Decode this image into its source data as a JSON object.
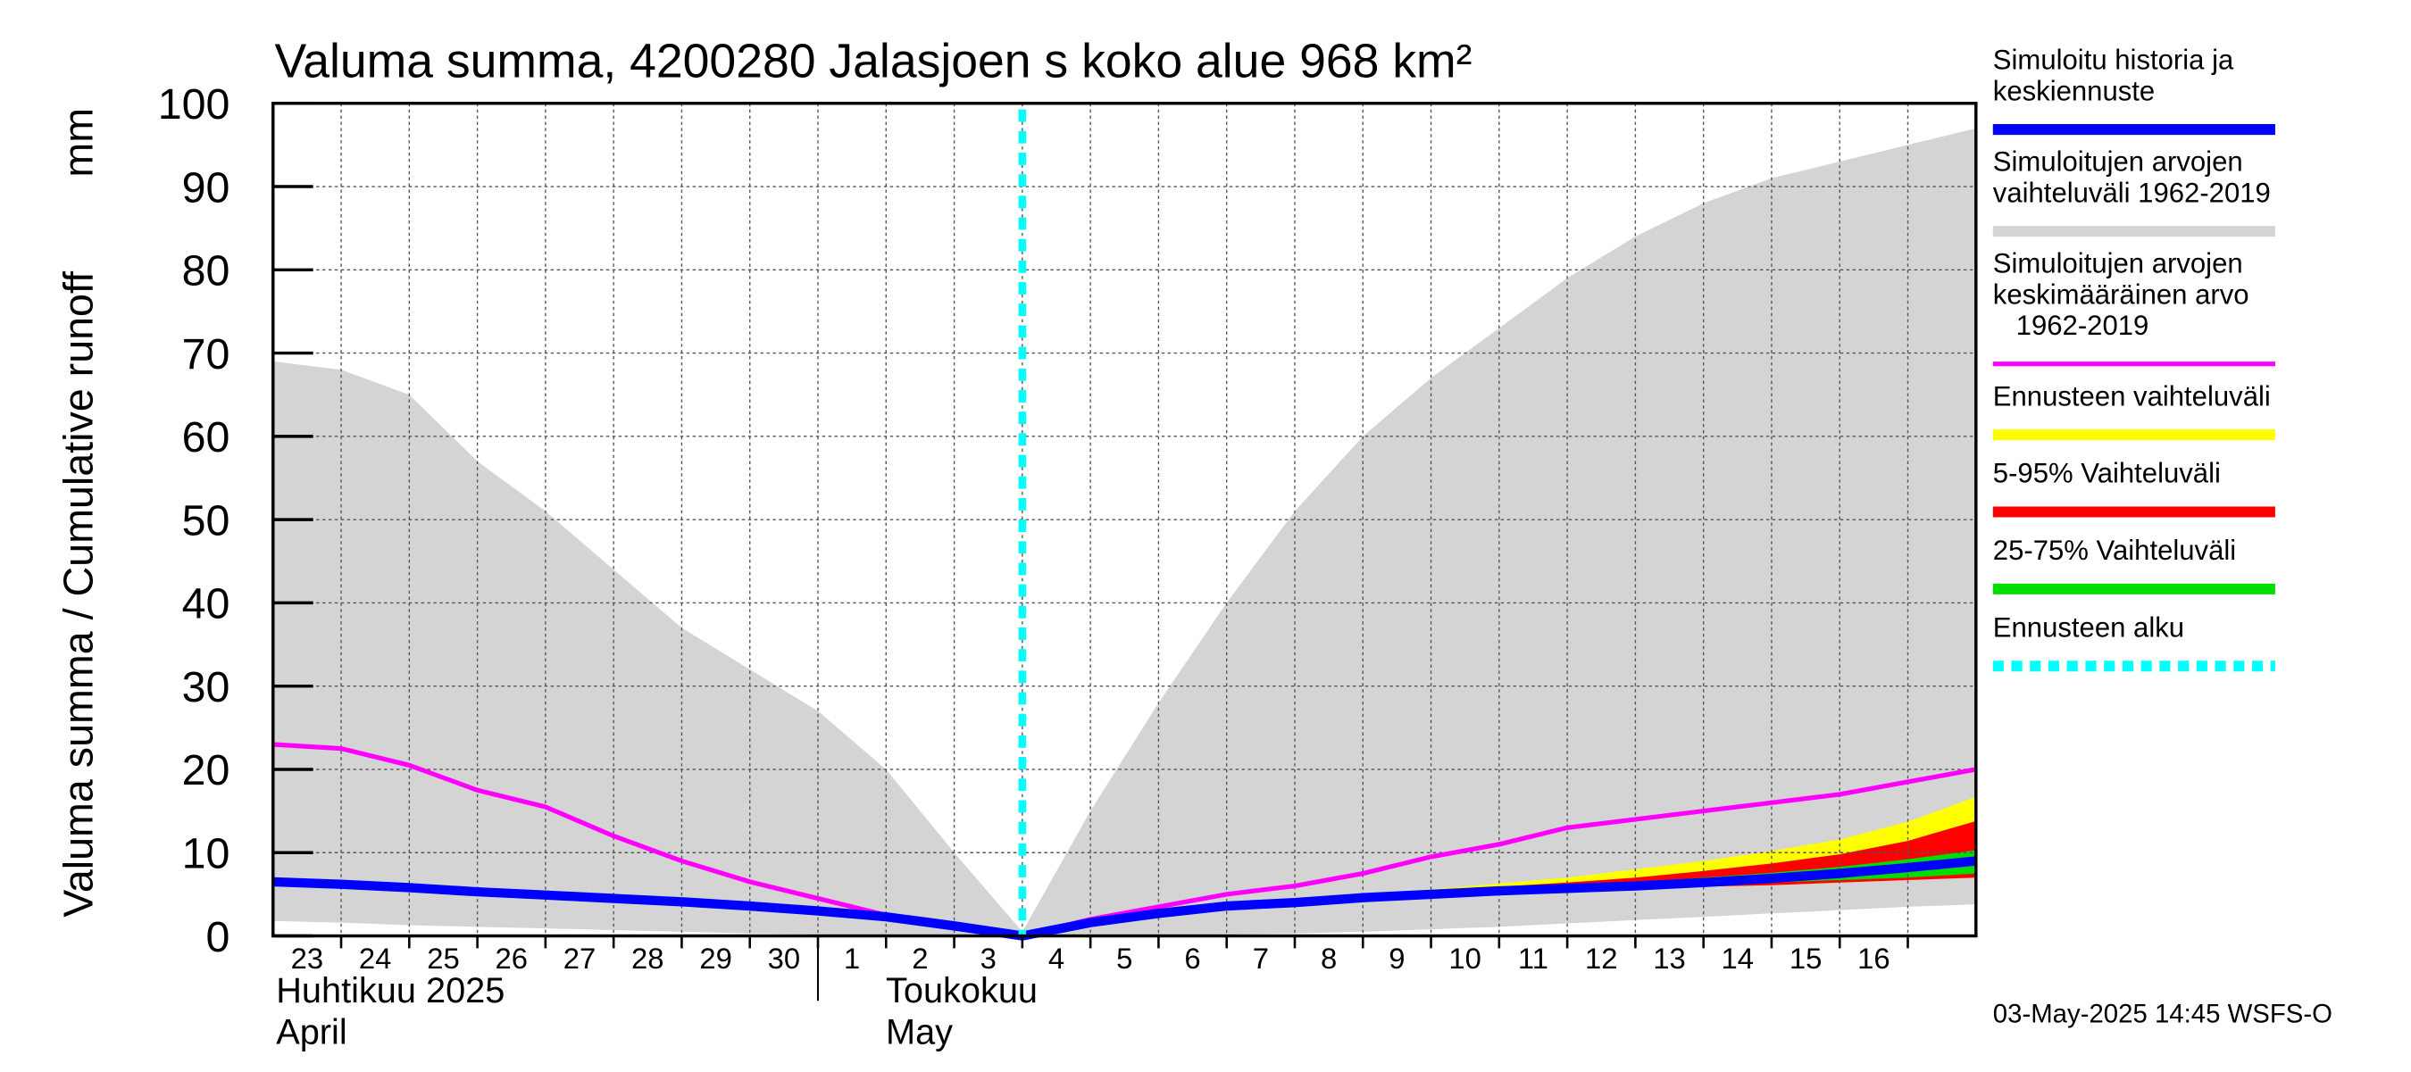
{
  "chart_data": {
    "type": "area",
    "title": "Valuma summa, 4200280 Jalasjoen s koko alue 968 km²",
    "ylabel": "Valuma summa / Cumulative runoff",
    "yunit": "mm",
    "ylim": [
      0,
      100
    ],
    "yticks": [
      0,
      10,
      20,
      30,
      40,
      50,
      60,
      70,
      80,
      90,
      100
    ],
    "grid": true,
    "legend_position": "right",
    "x_tick_labels": [
      "23",
      "24",
      "25",
      "26",
      "27",
      "28",
      "29",
      "30",
      "1",
      "2",
      "3",
      "4",
      "5",
      "6",
      "7",
      "8",
      "9",
      "10",
      "11",
      "12",
      "13",
      "14",
      "15",
      "16"
    ],
    "month_labels": [
      {
        "fi": "Huhtikuu  2025",
        "en": "April"
      },
      {
        "fi": "Toukokuu",
        "en": "May"
      }
    ],
    "x": [
      "2025-04-22",
      "2025-04-23",
      "2025-04-24",
      "2025-04-25",
      "2025-04-26",
      "2025-04-27",
      "2025-04-28",
      "2025-04-29",
      "2025-04-30",
      "2025-05-01",
      "2025-05-02",
      "2025-05-03",
      "2025-05-04",
      "2025-05-05",
      "2025-05-06",
      "2025-05-07",
      "2025-05-08",
      "2025-05-09",
      "2025-05-10",
      "2025-05-11",
      "2025-05-12",
      "2025-05-13",
      "2025-05-14",
      "2025-05-15",
      "2025-05-16",
      "2025-05-17"
    ],
    "forecast_start": "2025-05-03",
    "series": [
      {
        "name": "Simuloitujen arvojen vaihteluväli 1962-2019",
        "kind": "band",
        "color": "#d4d4d4",
        "lower": [
          1.8,
          1.6,
          1.3,
          1.1,
          0.9,
          0.7,
          0.5,
          0.3,
          0.2,
          0.1,
          0.05,
          0.0,
          0.0,
          0.1,
          0.2,
          0.3,
          0.5,
          0.8,
          1.1,
          1.5,
          1.9,
          2.3,
          2.7,
          3.1,
          3.5,
          3.8
        ],
        "upper": [
          69,
          68,
          65,
          57,
          51,
          44,
          37,
          32,
          27,
          20,
          10,
          0.5,
          15,
          28,
          40,
          51,
          60,
          67,
          73,
          79,
          84,
          88,
          91,
          93,
          95,
          97
        ]
      },
      {
        "name": "Simuloitujen arvojen keskimääräinen arvo 1962-2019",
        "kind": "line",
        "color": "#ff00ff",
        "values": [
          23,
          22.5,
          20.5,
          17.5,
          15.5,
          12,
          9,
          6.5,
          4.5,
          2.5,
          1.0,
          0.0,
          2.0,
          3.5,
          5.0,
          6.0,
          7.5,
          9.5,
          11.0,
          13.0,
          14.0,
          15.0,
          16.0,
          17.0,
          18.5,
          20.0
        ]
      },
      {
        "name": "Ennusteen vaihteluväli",
        "kind": "band",
        "color": "#ffff00",
        "lower": [
          null,
          null,
          null,
          null,
          null,
          null,
          null,
          null,
          null,
          null,
          null,
          0.0,
          1.6,
          2.7,
          3.6,
          4.0,
          4.4,
          4.8,
          5.1,
          5.4,
          5.6,
          5.9,
          6.1,
          6.4,
          6.7,
          7.0
        ],
        "upper": [
          null,
          null,
          null,
          null,
          null,
          null,
          null,
          null,
          null,
          null,
          null,
          0.0,
          1.6,
          2.7,
          3.6,
          4.3,
          5.0,
          5.6,
          6.3,
          7.0,
          8.0,
          9.0,
          10.2,
          11.6,
          13.7,
          16.7
        ]
      },
      {
        "name": "5-95% Vaihteluväli",
        "kind": "band",
        "color": "#ff0000",
        "lower": [
          null,
          null,
          null,
          null,
          null,
          null,
          null,
          null,
          null,
          null,
          null,
          0.0,
          1.6,
          2.7,
          3.6,
          4.0,
          4.4,
          4.8,
          5.1,
          5.4,
          5.6,
          5.9,
          6.1,
          6.4,
          6.7,
          7.0
        ],
        "upper": [
          null,
          null,
          null,
          null,
          null,
          null,
          null,
          null,
          null,
          null,
          null,
          0.0,
          1.6,
          2.7,
          3.6,
          4.2,
          4.8,
          5.4,
          5.9,
          6.4,
          7.0,
          7.8,
          8.7,
          9.8,
          11.4,
          13.8
        ]
      },
      {
        "name": "25-75% Vaihteluväli",
        "kind": "band",
        "color": "#00dd00",
        "lower": [
          null,
          null,
          null,
          null,
          null,
          null,
          null,
          null,
          null,
          null,
          null,
          0.0,
          1.6,
          2.7,
          3.6,
          4.0,
          4.5,
          4.9,
          5.2,
          5.5,
          5.8,
          6.1,
          6.4,
          6.7,
          7.0,
          7.5
        ],
        "upper": [
          null,
          null,
          null,
          null,
          null,
          null,
          null,
          null,
          null,
          null,
          null,
          0.0,
          1.6,
          2.7,
          3.6,
          4.1,
          4.7,
          5.2,
          5.6,
          6.0,
          6.5,
          7.0,
          7.6,
          8.3,
          9.2,
          10.3
        ]
      },
      {
        "name": "Simuloitu historia ja keskiennuste",
        "kind": "line",
        "color": "#0000ff",
        "values": [
          6.5,
          6.2,
          5.8,
          5.3,
          4.9,
          4.5,
          4.1,
          3.6,
          3.0,
          2.3,
          1.2,
          0.0,
          1.6,
          2.7,
          3.6,
          4.0,
          4.6,
          5.0,
          5.4,
          5.7,
          6.0,
          6.4,
          6.9,
          7.5,
          8.2,
          9.0
        ]
      }
    ],
    "forecast_line": {
      "name": "Ennusteen alku",
      "color": "#00ffff"
    }
  },
  "legend": [
    {
      "label": "Simuloitu historia ja keskiennuste",
      "color": "#0000ff",
      "style": "solid"
    },
    {
      "label": "Simuloitujen arvojen vaihteluväli 1962-2019",
      "color": "#d4d4d4",
      "style": "solid"
    },
    {
      "label": "Simuloitujen arvojen keskimääräinen arvo 1962-2019",
      "color": "#ff00ff",
      "style": "thin"
    },
    {
      "label": "Ennusteen vaihteluväli",
      "color": "#ffff00",
      "style": "solid"
    },
    {
      "label": "5-95% Vaihteluväli",
      "color": "#ff0000",
      "style": "solid"
    },
    {
      "label": "25-75% Vaihteluväli",
      "color": "#00dd00",
      "style": "solid"
    },
    {
      "label": "Ennusteen alku",
      "color": "#00ffff",
      "style": "dashed"
    }
  ],
  "legend_lines": [
    [
      "Simuloitu historia ja",
      "keskiennuste"
    ],
    [
      "Simuloitujen arvojen",
      "vaihteluväli 1962-2019"
    ],
    [
      "Simuloitujen arvojen",
      "keskimääräinen arvo",
      "   1962-2019"
    ],
    [
      "Ennusteen vaihteluväli"
    ],
    [
      "5-95% Vaihteluväli"
    ],
    [
      "25-75% Vaihteluväli"
    ],
    [
      "Ennusteen alku"
    ]
  ],
  "footer": "03-May-2025 14:45 WSFS-O"
}
